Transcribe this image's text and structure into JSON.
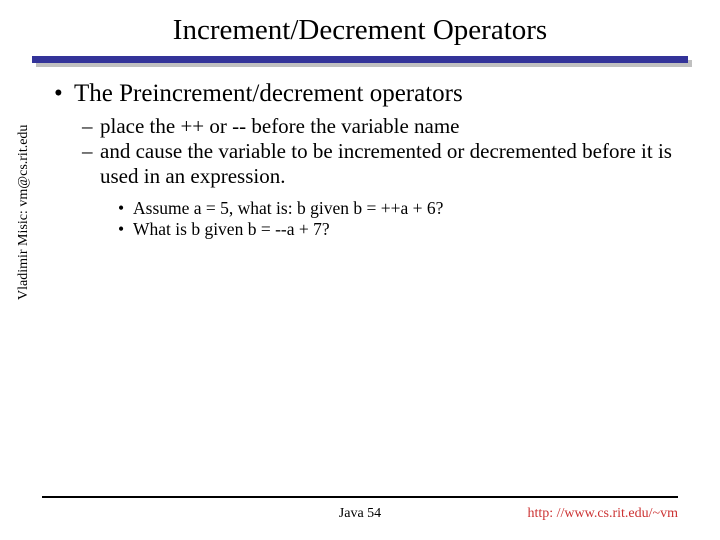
{
  "title": "Increment/Decrement Operators",
  "bullet1": "The Preincrement/decrement operators",
  "sub1": "place the ++ or -- before the variable name",
  "sub2": "and cause the variable to be incremented or decremented before it is used in an expression.",
  "subsub1": "Assume a = 5,  what is: b given b = ++a + 6?",
  "subsub2": "What is b given b = --a + 7?",
  "sidebar": "Vladimir Misic: vm@cs.rit.edu",
  "footer_center": "Java 54",
  "footer_right": "http: //www.cs.rit.edu/~vm",
  "colors": {
    "rule": "#333399",
    "link": "#cc3333",
    "text": "#000000",
    "bg": "#ffffff"
  }
}
